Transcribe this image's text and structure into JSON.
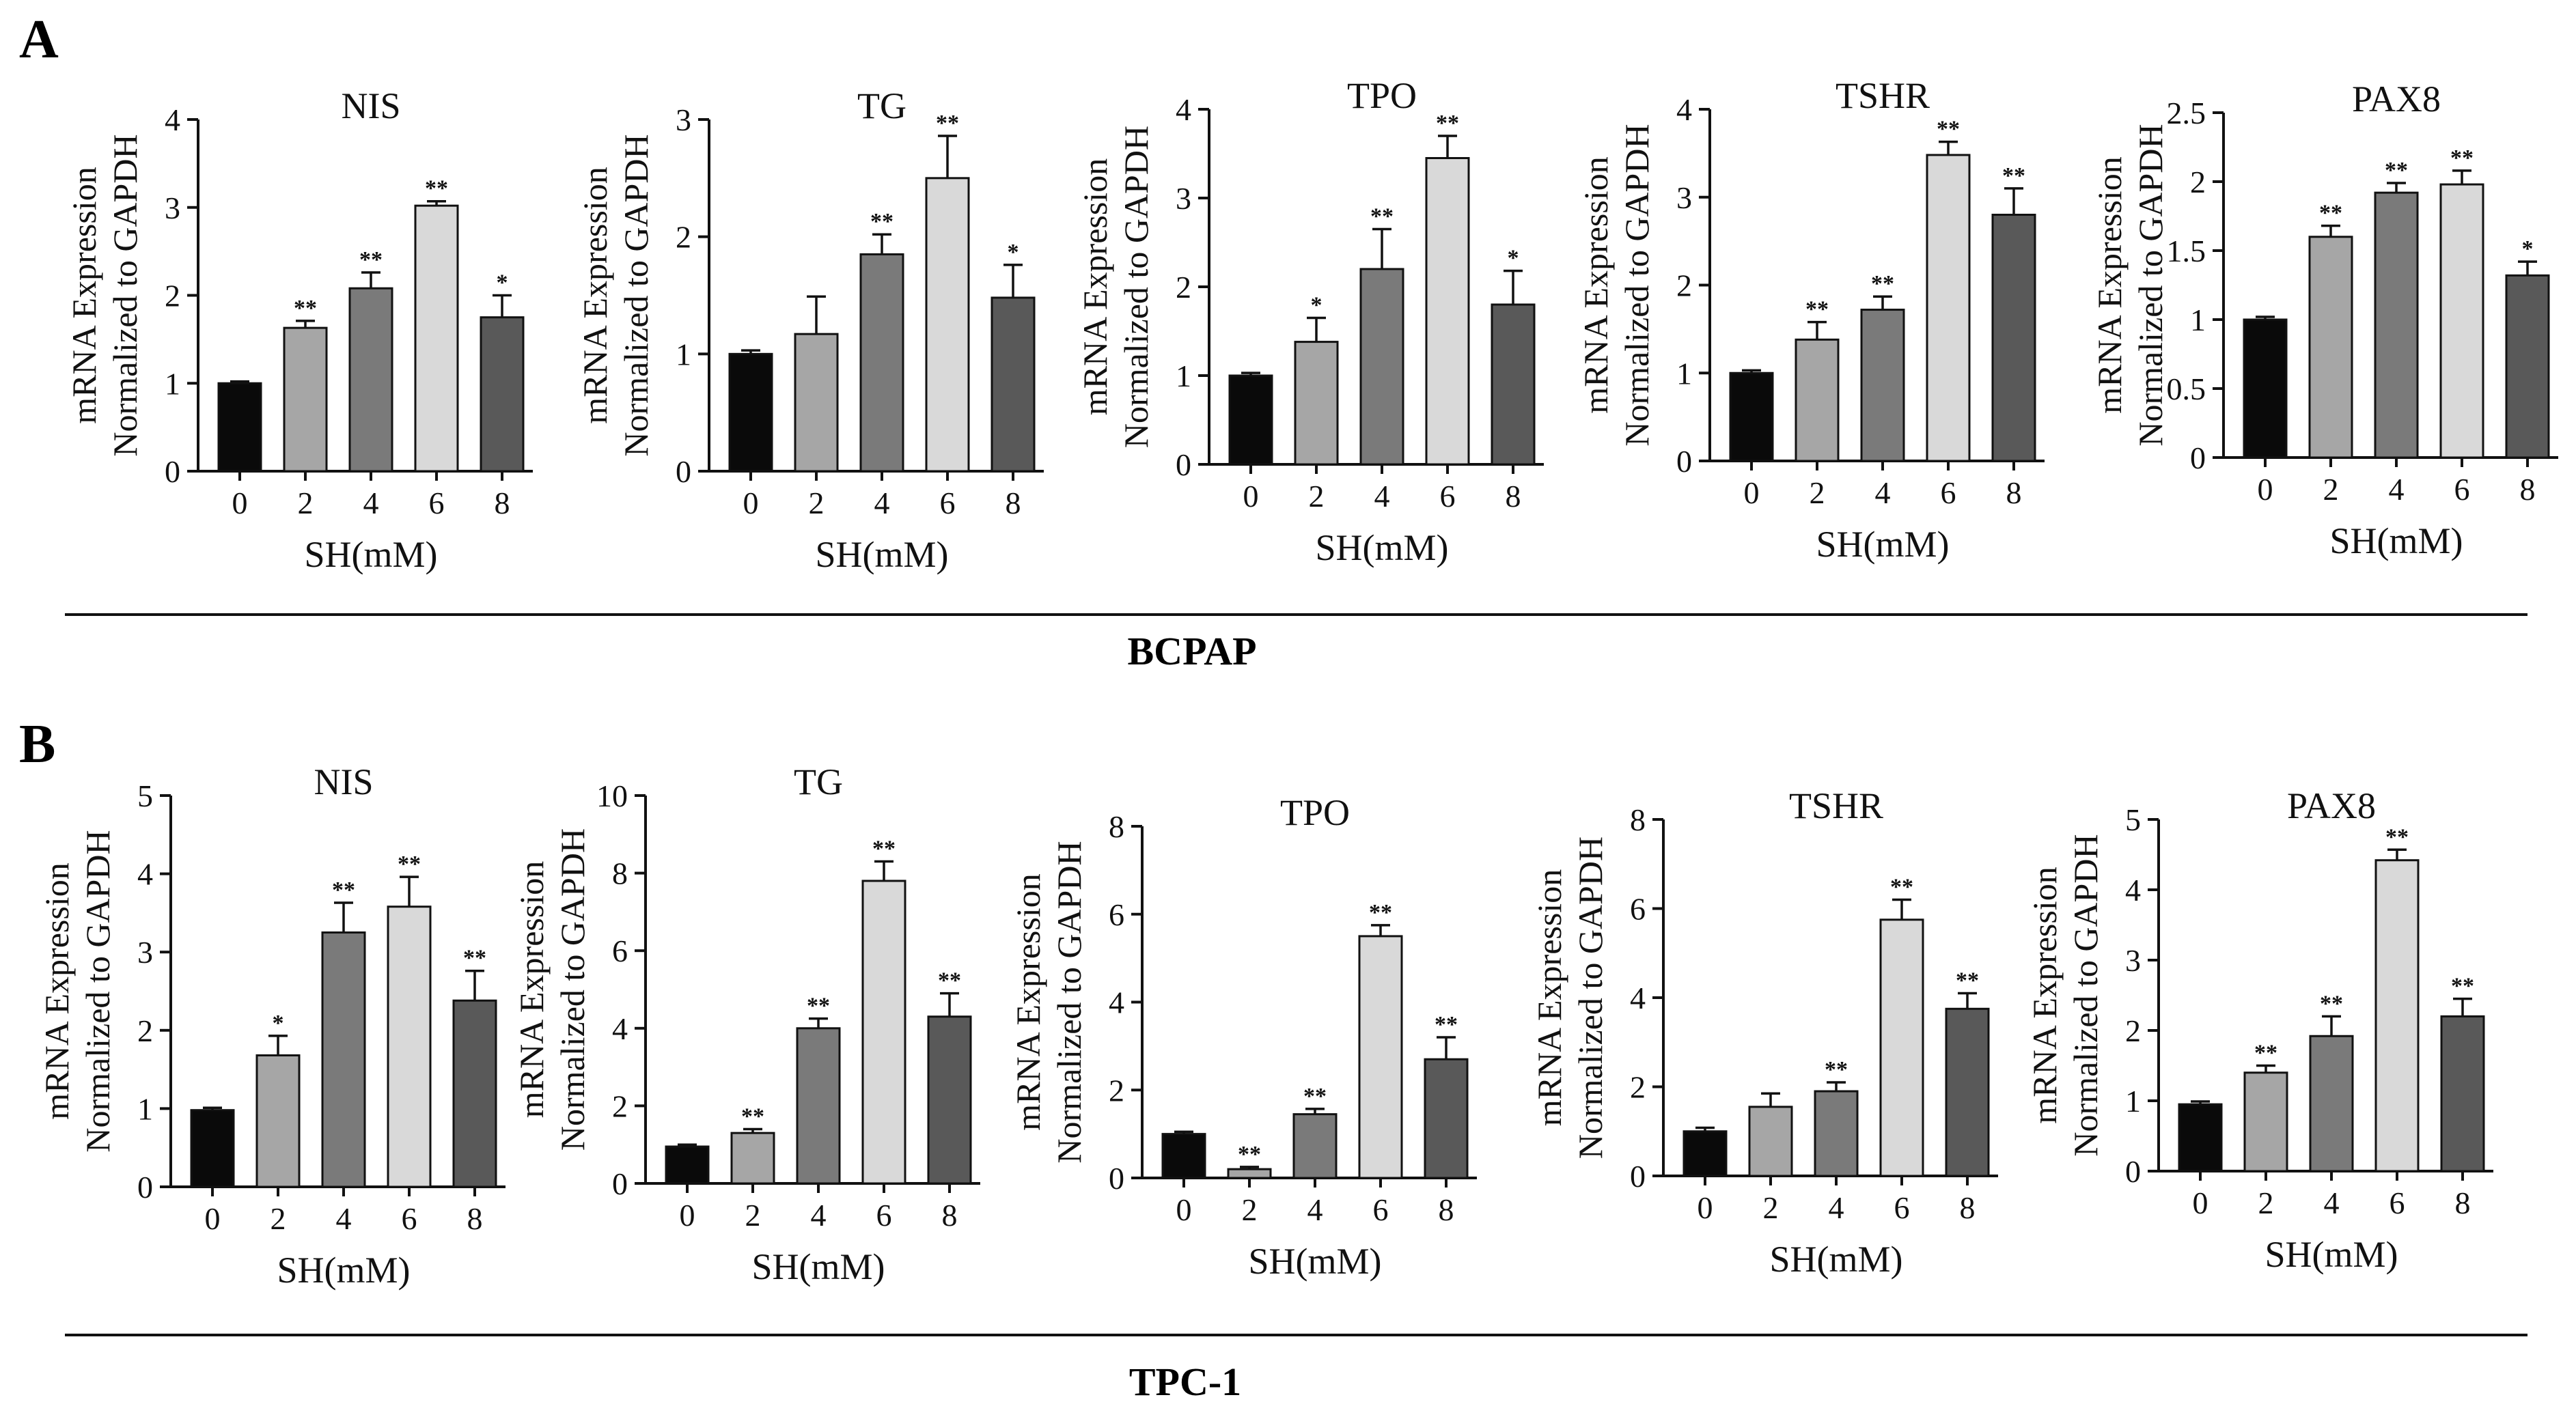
{
  "panels": [
    {
      "letter": "A",
      "cell_line": "BCPAP"
    },
    {
      "letter": "B",
      "cell_line": "TPC-1"
    }
  ],
  "colors": {
    "bars": [
      "#0a0a0a",
      "#a6a6a6",
      "#7a7a7a",
      "#d9d9d9",
      "#595959"
    ],
    "axis": "#111111"
  },
  "chart_data": [
    {
      "type": "bar",
      "panel": "A",
      "title": "NIS",
      "xlabel": "SH(mM)",
      "ylabel": [
        "mRNA Expression",
        "Normalized to GAPDH"
      ],
      "categories": [
        "0",
        "2",
        "4",
        "6",
        "8"
      ],
      "values": [
        1.0,
        1.63,
        2.08,
        3.02,
        1.75
      ],
      "errors": [
        0.02,
        0.08,
        0.18,
        0.05,
        0.25
      ],
      "significance": [
        "",
        "**",
        "**",
        "**",
        "*"
      ],
      "ylim": [
        0,
        4
      ],
      "yticks": [
        "0",
        "1",
        "2",
        "3",
        "4"
      ]
    },
    {
      "type": "bar",
      "panel": "A",
      "title": "TG",
      "xlabel": "SH(mM)",
      "ylabel": [
        "mRNA Expression",
        "Normalized to GAPDH"
      ],
      "categories": [
        "0",
        "2",
        "4",
        "6",
        "8"
      ],
      "values": [
        1.0,
        1.17,
        1.85,
        2.5,
        1.48
      ],
      "errors": [
        0.03,
        0.32,
        0.17,
        0.36,
        0.28
      ],
      "significance": [
        "",
        "",
        "**",
        "**",
        "*"
      ],
      "ylim": [
        0,
        3
      ],
      "yticks": [
        "0",
        "1",
        "2",
        "3"
      ]
    },
    {
      "type": "bar",
      "panel": "A",
      "title": "TPO",
      "xlabel": "SH(mM)",
      "ylabel": [
        "mRNA Expression",
        "Normalized to GAPDH"
      ],
      "categories": [
        "0",
        "2",
        "4",
        "6",
        "8"
      ],
      "values": [
        1.0,
        1.38,
        2.2,
        3.45,
        1.8
      ],
      "errors": [
        0.03,
        0.27,
        0.45,
        0.25,
        0.38
      ],
      "significance": [
        "",
        "*",
        "**",
        "**",
        "*"
      ],
      "ylim": [
        0,
        4
      ],
      "yticks": [
        "0",
        "1",
        "2",
        "3",
        "4"
      ]
    },
    {
      "type": "bar",
      "panel": "A",
      "title": "TSHR",
      "xlabel": "SH(mM)",
      "ylabel": [
        "mRNA Expression",
        "Normalized to GAPDH"
      ],
      "categories": [
        "0",
        "2",
        "4",
        "6",
        "8"
      ],
      "values": [
        1.0,
        1.38,
        1.72,
        3.48,
        2.8
      ],
      "errors": [
        0.03,
        0.2,
        0.15,
        0.15,
        0.3
      ],
      "significance": [
        "",
        "**",
        "**",
        "**",
        "**"
      ],
      "ylim": [
        0,
        4
      ],
      "yticks": [
        "0",
        "1",
        "2",
        "3",
        "4"
      ]
    },
    {
      "type": "bar",
      "panel": "A",
      "title": "PAX8",
      "xlabel": "SH(mM)",
      "ylabel": [
        "mRNA Expression",
        "Normalized to GAPDH"
      ],
      "categories": [
        "0",
        "2",
        "4",
        "6",
        "8"
      ],
      "values": [
        1.0,
        1.6,
        1.92,
        1.98,
        1.32
      ],
      "errors": [
        0.02,
        0.08,
        0.07,
        0.1,
        0.1
      ],
      "significance": [
        "",
        "**",
        "**",
        "**",
        "*"
      ],
      "ylim": [
        0,
        2.5
      ],
      "yticks": [
        "0",
        "0.5",
        "1",
        "1.5",
        "2",
        "2.5"
      ]
    },
    {
      "type": "bar",
      "panel": "B",
      "title": "NIS",
      "xlabel": "SH(mM)",
      "ylabel": [
        "mRNA Expression",
        "Normalized to GAPDH"
      ],
      "categories": [
        "0",
        "2",
        "4",
        "6",
        "8"
      ],
      "values": [
        0.98,
        1.68,
        3.25,
        3.58,
        2.38
      ],
      "errors": [
        0.03,
        0.25,
        0.38,
        0.38,
        0.38
      ],
      "significance": [
        "",
        "*",
        "**",
        "**",
        "**"
      ],
      "ylim": [
        0,
        5
      ],
      "yticks": [
        "0",
        "1",
        "2",
        "3",
        "4",
        "5"
      ]
    },
    {
      "type": "bar",
      "panel": "B",
      "title": "TG",
      "xlabel": "SH(mM)",
      "ylabel": [
        "mRNA Expression",
        "Normalized to GAPDH"
      ],
      "categories": [
        "0",
        "2",
        "4",
        "6",
        "8"
      ],
      "values": [
        0.95,
        1.3,
        4.0,
        7.8,
        4.3
      ],
      "errors": [
        0.05,
        0.1,
        0.25,
        0.5,
        0.6
      ],
      "significance": [
        "",
        "**",
        "**",
        "**",
        "**"
      ],
      "ylim": [
        0,
        10
      ],
      "yticks": [
        "0",
        "2",
        "4",
        "6",
        "8",
        "10"
      ]
    },
    {
      "type": "bar",
      "panel": "B",
      "title": "TPO",
      "xlabel": "SH(mM)",
      "ylabel": [
        "mRNA Expression",
        "Normalized to GAPDH"
      ],
      "categories": [
        "0",
        "2",
        "4",
        "6",
        "8"
      ],
      "values": [
        1.0,
        0.2,
        1.45,
        5.5,
        2.7
      ],
      "errors": [
        0.05,
        0.05,
        0.12,
        0.25,
        0.5
      ],
      "significance": [
        "",
        "**",
        "**",
        "**",
        "**"
      ],
      "ylim": [
        0,
        8
      ],
      "yticks": [
        "0",
        "2",
        "4",
        "6",
        "8"
      ]
    },
    {
      "type": "bar",
      "panel": "B",
      "title": "TSHR",
      "xlabel": "SH(mM)",
      "ylabel": [
        "mRNA Expression",
        "Normalized to GAPDH"
      ],
      "categories": [
        "0",
        "2",
        "4",
        "6",
        "8"
      ],
      "values": [
        1.0,
        1.55,
        1.9,
        5.75,
        3.75
      ],
      "errors": [
        0.08,
        0.3,
        0.2,
        0.45,
        0.35
      ],
      "significance": [
        "",
        "",
        "**",
        "**",
        "**"
      ],
      "ylim": [
        0,
        8
      ],
      "yticks": [
        "0",
        "2",
        "4",
        "6",
        "8"
      ]
    },
    {
      "type": "bar",
      "panel": "B",
      "title": "PAX8",
      "xlabel": "SH(mM)",
      "ylabel": [
        "mRNA Expression",
        "Normalized to GAPDH"
      ],
      "categories": [
        "0",
        "2",
        "4",
        "6",
        "8"
      ],
      "values": [
        0.95,
        1.4,
        1.92,
        4.42,
        2.2
      ],
      "errors": [
        0.04,
        0.1,
        0.28,
        0.15,
        0.25
      ],
      "significance": [
        "",
        "**",
        "**",
        "**",
        "**"
      ],
      "ylim": [
        0,
        5
      ],
      "yticks": [
        "0",
        "1",
        "2",
        "3",
        "4",
        "5"
      ]
    }
  ]
}
